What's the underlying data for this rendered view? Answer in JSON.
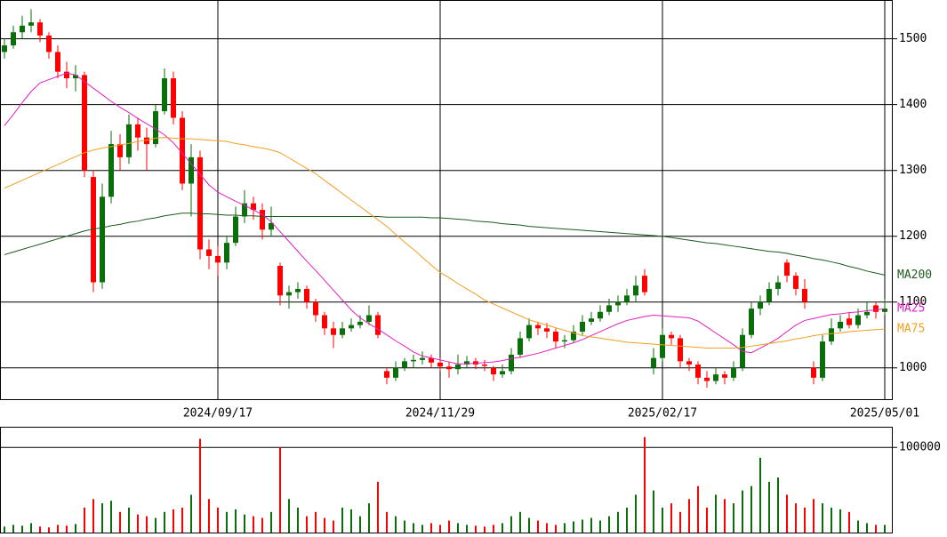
{
  "chart_data": {
    "type": "candlestick",
    "categories": [
      null,
      null,
      null,
      null,
      null,
      null,
      null,
      null,
      null,
      null,
      null,
      null,
      null,
      null,
      null,
      null,
      null,
      null,
      null,
      null,
      null,
      null,
      null,
      null,
      "2024/09/17",
      null,
      null,
      null,
      null,
      null,
      null,
      null,
      null,
      null,
      null,
      null,
      null,
      null,
      null,
      null,
      null,
      null,
      null,
      null,
      null,
      null,
      null,
      null,
      null,
      "2024/11/29",
      null,
      null,
      null,
      null,
      null,
      null,
      null,
      null,
      null,
      null,
      null,
      null,
      null,
      null,
      null,
      null,
      null,
      null,
      null,
      null,
      null,
      null,
      null,
      null,
      "2025/02/17",
      null,
      null,
      null,
      null,
      null,
      null,
      null,
      null,
      null,
      null,
      null,
      null,
      null,
      null,
      null,
      null,
      null,
      null,
      null,
      null,
      null,
      null,
      null,
      null,
      "2025/05/01"
    ],
    "ohlc": [
      [
        1480,
        1500,
        1470,
        1490
      ],
      [
        1490,
        1520,
        1485,
        1510
      ],
      [
        1510,
        1535,
        1500,
        1520
      ],
      [
        1520,
        1545,
        1510,
        1525
      ],
      [
        1525,
        1530,
        1495,
        1505
      ],
      [
        1505,
        1510,
        1470,
        1480
      ],
      [
        1480,
        1490,
        1440,
        1450
      ],
      [
        1450,
        1465,
        1425,
        1440
      ],
      [
        1440,
        1460,
        1420,
        1445
      ],
      [
        1445,
        1450,
        1290,
        1300
      ],
      [
        1290,
        1300,
        1115,
        1130
      ],
      [
        1130,
        1280,
        1120,
        1260
      ],
      [
        1260,
        1360,
        1250,
        1340
      ],
      [
        1340,
        1355,
        1300,
        1320
      ],
      [
        1320,
        1385,
        1310,
        1370
      ],
      [
        1370,
        1380,
        1330,
        1350
      ],
      [
        1350,
        1365,
        1300,
        1340
      ],
      [
        1340,
        1400,
        1335,
        1390
      ],
      [
        1390,
        1455,
        1385,
        1440
      ],
      [
        1440,
        1450,
        1370,
        1380
      ],
      [
        1380,
        1390,
        1270,
        1280
      ],
      [
        1280,
        1340,
        1230,
        1320
      ],
      [
        1320,
        1330,
        1165,
        1180
      ],
      [
        1180,
        1195,
        1150,
        1170
      ],
      [
        1170,
        1185,
        1140,
        1160
      ],
      [
        1160,
        1200,
        1150,
        1190
      ],
      [
        1190,
        1245,
        1185,
        1230
      ],
      [
        1230,
        1270,
        1220,
        1250
      ],
      [
        1250,
        1260,
        1225,
        1240
      ],
      [
        1240,
        1250,
        1195,
        1210
      ],
      [
        1210,
        1245,
        1200,
        1220
      ],
      [
        1155,
        1160,
        1095,
        1110
      ],
      [
        1110,
        1125,
        1090,
        1115
      ],
      [
        1115,
        1130,
        1105,
        1120
      ],
      [
        1120,
        1125,
        1090,
        1100
      ],
      [
        1100,
        1105,
        1070,
        1080
      ],
      [
        1080,
        1085,
        1050,
        1060
      ],
      [
        1060,
        1070,
        1030,
        1050
      ],
      [
        1050,
        1070,
        1045,
        1060
      ],
      [
        1060,
        1075,
        1055,
        1065
      ],
      [
        1065,
        1080,
        1060,
        1070
      ],
      [
        1070,
        1095,
        1065,
        1080
      ],
      [
        1080,
        1085,
        1045,
        1050
      ],
      [
        995,
        1000,
        975,
        985
      ],
      [
        985,
        1010,
        980,
        1000
      ],
      [
        1000,
        1015,
        995,
        1010
      ],
      [
        1010,
        1020,
        1000,
        1012
      ],
      [
        1012,
        1025,
        1005,
        1015
      ],
      [
        1015,
        1020,
        1000,
        1008
      ],
      [
        1008,
        1015,
        995,
        1002
      ],
      [
        1002,
        1010,
        985,
        998
      ],
      [
        998,
        1020,
        990,
        1005
      ],
      [
        1005,
        1018,
        1000,
        1010
      ],
      [
        1010,
        1015,
        998,
        1005
      ],
      [
        1005,
        1012,
        995,
        1003
      ],
      [
        1000,
        1003,
        980,
        990
      ],
      [
        990,
        1005,
        985,
        995
      ],
      [
        995,
        1030,
        990,
        1020
      ],
      [
        1020,
        1055,
        1015,
        1045
      ],
      [
        1045,
        1075,
        1040,
        1065
      ],
      [
        1065,
        1070,
        1050,
        1060
      ],
      [
        1060,
        1068,
        1045,
        1055
      ],
      [
        1055,
        1060,
        1030,
        1040
      ],
      [
        1040,
        1050,
        1030,
        1042
      ],
      [
        1042,
        1065,
        1038,
        1055
      ],
      [
        1055,
        1080,
        1050,
        1070
      ],
      [
        1070,
        1085,
        1065,
        1075
      ],
      [
        1075,
        1095,
        1070,
        1085
      ],
      [
        1085,
        1105,
        1080,
        1095
      ],
      [
        1095,
        1110,
        1085,
        1100
      ],
      [
        1100,
        1120,
        1095,
        1110
      ],
      [
        1110,
        1140,
        1100,
        1125
      ],
      [
        1140,
        1150,
        1110,
        1115
      ],
      [
        1000,
        1030,
        990,
        1015
      ],
      [
        1015,
        1060,
        1010,
        1050
      ],
      [
        1050,
        1055,
        1035,
        1045
      ],
      [
        1045,
        1050,
        1000,
        1010
      ],
      [
        1010,
        1015,
        995,
        1005
      ],
      [
        1005,
        1010,
        975,
        985
      ],
      [
        985,
        995,
        970,
        980
      ],
      [
        980,
        1000,
        975,
        990
      ],
      [
        990,
        995,
        975,
        985
      ],
      [
        985,
        1010,
        980,
        1000
      ],
      [
        1000,
        1060,
        995,
        1050
      ],
      [
        1050,
        1100,
        1045,
        1090
      ],
      [
        1090,
        1110,
        1080,
        1100
      ],
      [
        1100,
        1130,
        1095,
        1120
      ],
      [
        1120,
        1140,
        1110,
        1130
      ],
      [
        1160,
        1165,
        1130,
        1140
      ],
      [
        1140,
        1145,
        1110,
        1120
      ],
      [
        1120,
        1135,
        1090,
        1100
      ],
      [
        1000,
        1010,
        975,
        985
      ],
      [
        985,
        1050,
        980,
        1040
      ],
      [
        1040,
        1075,
        1035,
        1060
      ],
      [
        1060,
        1080,
        1055,
        1070
      ],
      [
        1075,
        1085,
        1060,
        1065
      ],
      [
        1065,
        1090,
        1060,
        1080
      ],
      [
        1080,
        1100,
        1075,
        1085
      ],
      [
        1095,
        1100,
        1075,
        1085
      ],
      [
        1085,
        1105,
        1080,
        1090
      ]
    ],
    "up_color": "#0a6e0a",
    "down_color": "#ff0000",
    "ylim": [
      951,
      1559
    ],
    "yticks": [
      1000,
      1100,
      1200,
      1300,
      1400,
      1500
    ],
    "series": [
      {
        "name": "MA200",
        "color": "#1e5a1e",
        "values": [
          1172,
          1176,
          1180,
          1184,
          1188,
          1192,
          1196,
          1200,
          1204,
          1208,
          1211,
          1213,
          1216,
          1218,
          1221,
          1223,
          1226,
          1228,
          1231,
          1233,
          1235,
          1235,
          1234,
          1234,
          1233,
          1232,
          1232,
          1231,
          1231,
          1230,
          1230,
          1230,
          1230,
          1230,
          1230,
          1230,
          1230,
          1230,
          1230,
          1230,
          1230,
          1230,
          1230,
          1229,
          1229,
          1229,
          1229,
          1229,
          1228,
          1228,
          1227,
          1226,
          1225,
          1223,
          1222,
          1221,
          1219,
          1218,
          1217,
          1215,
          1214,
          1213,
          1212,
          1211,
          1210,
          1209,
          1208,
          1207,
          1206,
          1205,
          1204,
          1203,
          1202,
          1201,
          1200,
          1198,
          1196,
          1194,
          1192,
          1190,
          1189,
          1187,
          1185,
          1183,
          1181,
          1179,
          1177,
          1176,
          1174,
          1171,
          1169,
          1166,
          1164,
          1161,
          1158,
          1154,
          1151,
          1147,
          1144,
          1141
        ]
      },
      {
        "name": "MA25",
        "color": "#e020c0",
        "values": [
          1368,
          1385,
          1403,
          1420,
          1433,
          1438,
          1443,
          1448,
          1445,
          1435,
          1425,
          1415,
          1405,
          1396,
          1388,
          1379,
          1371,
          1363,
          1354,
          1342,
          1326,
          1310,
          1294,
          1278,
          1267,
          1260,
          1253,
          1247,
          1240,
          1233,
          1222,
          1207,
          1192,
          1177,
          1162,
          1148,
          1133,
          1118,
          1103,
          1088,
          1076,
          1067,
          1059,
          1050,
          1041,
          1033,
          1024,
          1018,
          1015,
          1012,
          1009,
          1006,
          1006,
          1007,
          1008,
          1009,
          1011,
          1014,
          1016,
          1019,
          1022,
          1026,
          1030,
          1034,
          1038,
          1043,
          1049,
          1055,
          1061,
          1067,
          1072,
          1075,
          1078,
          1080,
          1079,
          1078,
          1077,
          1076,
          1071,
          1062,
          1053,
          1044,
          1035,
          1025,
          1023,
          1030,
          1037,
          1045,
          1055,
          1065,
          1072,
          1075,
          1078,
          1081,
          1082,
          1084,
          1085,
          1087,
          1088,
          1090
        ]
      },
      {
        "name": "MA75",
        "color": "#f0a020",
        "values": [
          1273,
          1279,
          1285,
          1291,
          1297,
          1303,
          1309,
          1315,
          1321,
          1327,
          1331,
          1334,
          1336,
          1339,
          1341,
          1344,
          1346,
          1349,
          1350,
          1349,
          1348,
          1348,
          1347,
          1346,
          1345,
          1344,
          1341,
          1339,
          1336,
          1334,
          1331,
          1327,
          1319,
          1311,
          1303,
          1295,
          1285,
          1275,
          1265,
          1255,
          1245,
          1235,
          1225,
          1215,
          1203,
          1191,
          1180,
          1168,
          1156,
          1145,
          1137,
          1128,
          1120,
          1112,
          1103,
          1097,
          1091,
          1085,
          1079,
          1073,
          1069,
          1065,
          1061,
          1057,
          1053,
          1049,
          1047,
          1045,
          1043,
          1041,
          1039,
          1038,
          1037,
          1036,
          1035,
          1034,
          1033,
          1032,
          1031,
          1030,
          1030,
          1030,
          1030,
          1031,
          1033,
          1035,
          1037,
          1039,
          1041,
          1044,
          1046,
          1049,
          1051,
          1052,
          1053,
          1055,
          1056,
          1057,
          1058,
          1059
        ]
      }
    ],
    "volume": {
      "values": [
        8000,
        10000,
        9000,
        12000,
        8000,
        7000,
        10000,
        9000,
        11000,
        30000,
        40000,
        35000,
        38000,
        25000,
        30000,
        22000,
        20000,
        18000,
        25000,
        28000,
        30000,
        45000,
        110000,
        40000,
        30000,
        25000,
        28000,
        22000,
        20000,
        18000,
        25000,
        100000,
        40000,
        30000,
        20000,
        25000,
        18000,
        15000,
        30000,
        28000,
        20000,
        35000,
        60000,
        25000,
        20000,
        15000,
        12000,
        10000,
        12000,
        10000,
        15000,
        12000,
        10000,
        9000,
        8000,
        10000,
        12000,
        20000,
        25000,
        18000,
        15000,
        12000,
        10000,
        12000,
        14000,
        16000,
        18000,
        15000,
        20000,
        25000,
        30000,
        45000,
        112000,
        50000,
        30000,
        35000,
        25000,
        40000,
        55000,
        30000,
        45000,
        40000,
        35000,
        50000,
        55000,
        88000,
        60000,
        65000,
        45000,
        35000,
        30000,
        40000,
        35000,
        30000,
        28000,
        25000,
        15000,
        12000,
        10000,
        10000
      ],
      "ylim": [
        0,
        124000
      ],
      "yticks": [
        100000
      ]
    }
  }
}
